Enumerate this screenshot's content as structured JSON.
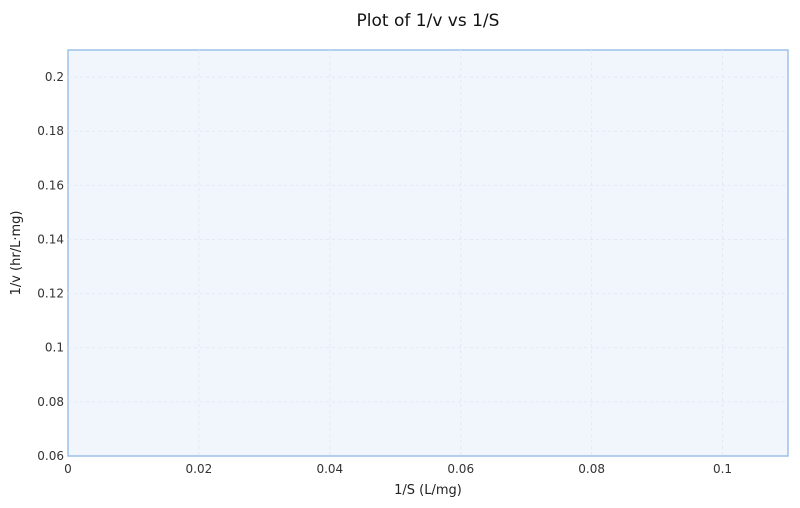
{
  "chart_data": {
    "type": "scatter",
    "title": "Plot of 1/v vs 1/S",
    "xlabel": "1/S (L/mg)",
    "ylabel": "1/v (hr/L·mg)",
    "xlim": [
      0,
      0.11
    ],
    "ylim": [
      0.06,
      0.21
    ],
    "xticks": [
      0,
      0.02,
      0.04,
      0.06,
      0.08,
      0.1
    ],
    "xtick_labels": [
      "0",
      "0.02",
      "0.04",
      "0.06",
      "0.08",
      "0.1"
    ],
    "yticks": [
      0.06,
      0.08,
      0.1,
      0.12,
      0.14,
      0.16,
      0.18,
      0.2
    ],
    "ytick_labels": [
      "0.06",
      "0.08",
      "0.1",
      "0.12",
      "0.14",
      "0.16",
      "0.18",
      "0.2"
    ],
    "grid": true,
    "series": [],
    "colors": {
      "plot_background": "#f1f6fd",
      "plot_border": "#9dc1ea",
      "grid": "#e3e9f2"
    }
  }
}
